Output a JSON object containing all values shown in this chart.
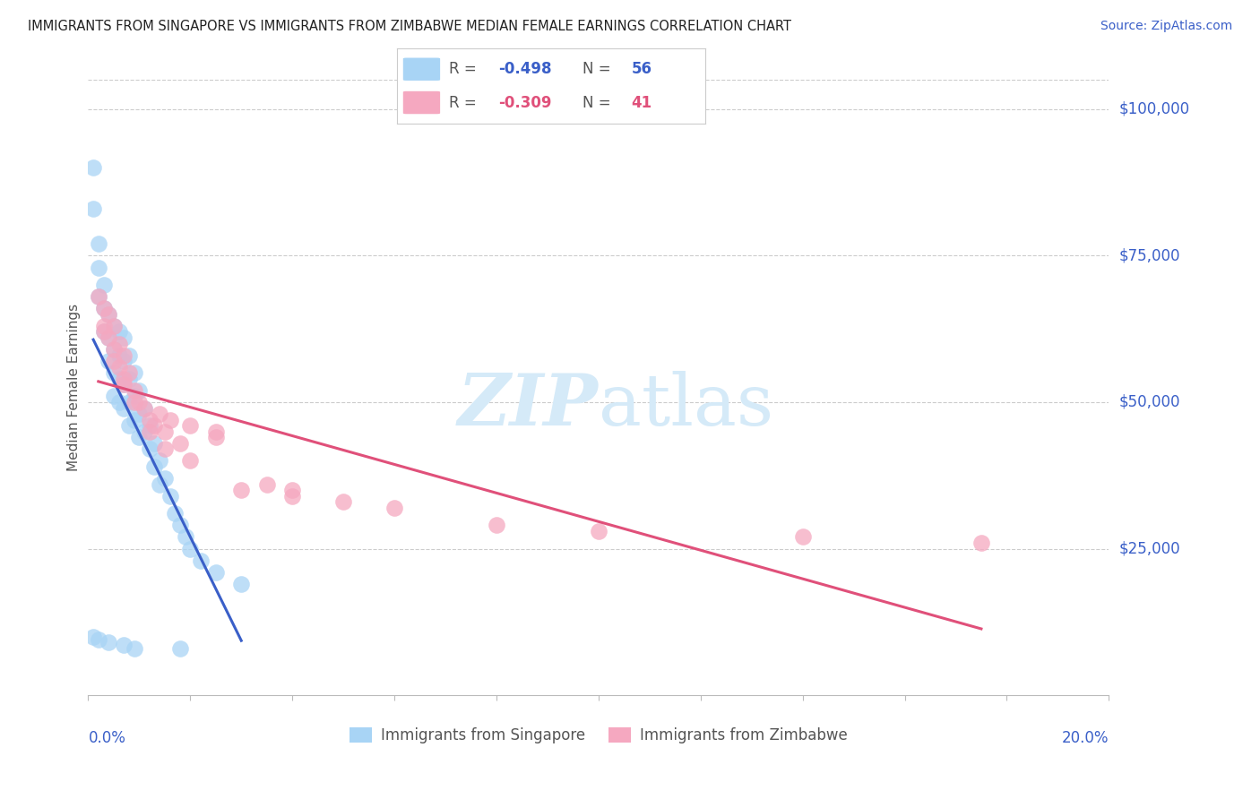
{
  "title": "IMMIGRANTS FROM SINGAPORE VS IMMIGRANTS FROM ZIMBABWE MEDIAN FEMALE EARNINGS CORRELATION CHART",
  "source": "Source: ZipAtlas.com",
  "ylabel": "Median Female Earnings",
  "color_singapore": "#a8d4f5",
  "color_zimbabwe": "#f5a8c0",
  "color_singapore_line": "#3a5fc8",
  "color_zimbabwe_line": "#e0507a",
  "color_title": "#222222",
  "color_source": "#3a5fc8",
  "color_ytick": "#3a5fc8",
  "color_xtick": "#3a5fc8",
  "color_ylabel": "#555555",
  "color_grid": "#cccccc",
  "watermark_color": "#d5eaf8",
  "legend_R1": "R = ",
  "legend_R1_val": "-0.498",
  "legend_N1": "N = ",
  "legend_N1_val": "56",
  "legend_R2": "R = ",
  "legend_R2_val": "-0.309",
  "legend_N2": "N = ",
  "legend_N2_val": "41",
  "legend_label1": "Immigrants from Singapore",
  "legend_label2": "Immigrants from Zimbabwe",
  "xlim": [
    0.0,
    0.2
  ],
  "ylim": [
    0,
    105000
  ],
  "ytick_vals": [
    25000,
    50000,
    75000,
    100000
  ],
  "ytick_labels": [
    "$25,000",
    "$50,000",
    "$75,000",
    "$100,000"
  ],
  "sg_x": [
    0.001,
    0.001,
    0.002,
    0.002,
    0.002,
    0.003,
    0.003,
    0.003,
    0.004,
    0.004,
    0.004,
    0.005,
    0.005,
    0.005,
    0.005,
    0.006,
    0.006,
    0.006,
    0.006,
    0.007,
    0.007,
    0.007,
    0.007,
    0.008,
    0.008,
    0.008,
    0.008,
    0.009,
    0.009,
    0.009,
    0.01,
    0.01,
    0.01,
    0.011,
    0.011,
    0.012,
    0.012,
    0.013,
    0.013,
    0.014,
    0.014,
    0.015,
    0.016,
    0.017,
    0.018,
    0.019,
    0.02,
    0.022,
    0.025,
    0.03,
    0.001,
    0.002,
    0.004,
    0.007,
    0.009,
    0.018
  ],
  "sg_y": [
    90000,
    83000,
    77000,
    73000,
    68000,
    70000,
    66000,
    62000,
    65000,
    61000,
    57000,
    63000,
    59000,
    55000,
    51000,
    62000,
    58000,
    54000,
    50000,
    61000,
    57000,
    53000,
    49000,
    58000,
    54000,
    50000,
    46000,
    55000,
    51000,
    47000,
    52000,
    48000,
    44000,
    49000,
    45000,
    46000,
    42000,
    43000,
    39000,
    40000,
    36000,
    37000,
    34000,
    31000,
    29000,
    27000,
    25000,
    23000,
    21000,
    19000,
    10000,
    9500,
    9000,
    8500,
    8000,
    8000
  ],
  "zw_x": [
    0.002,
    0.003,
    0.003,
    0.004,
    0.004,
    0.005,
    0.005,
    0.006,
    0.006,
    0.007,
    0.007,
    0.008,
    0.009,
    0.01,
    0.011,
    0.012,
    0.013,
    0.014,
    0.015,
    0.016,
    0.018,
    0.02,
    0.025,
    0.03,
    0.035,
    0.04,
    0.05,
    0.06,
    0.08,
    0.1,
    0.003,
    0.005,
    0.007,
    0.009,
    0.012,
    0.015,
    0.02,
    0.025,
    0.04,
    0.14,
    0.175
  ],
  "zw_y": [
    68000,
    66000,
    63000,
    65000,
    61000,
    63000,
    59000,
    60000,
    56000,
    58000,
    54000,
    55000,
    52000,
    50000,
    49000,
    47000,
    46000,
    48000,
    45000,
    47000,
    43000,
    46000,
    44000,
    35000,
    36000,
    34000,
    33000,
    32000,
    29000,
    28000,
    62000,
    57000,
    53000,
    50000,
    45000,
    42000,
    40000,
    45000,
    35000,
    27000,
    26000
  ]
}
